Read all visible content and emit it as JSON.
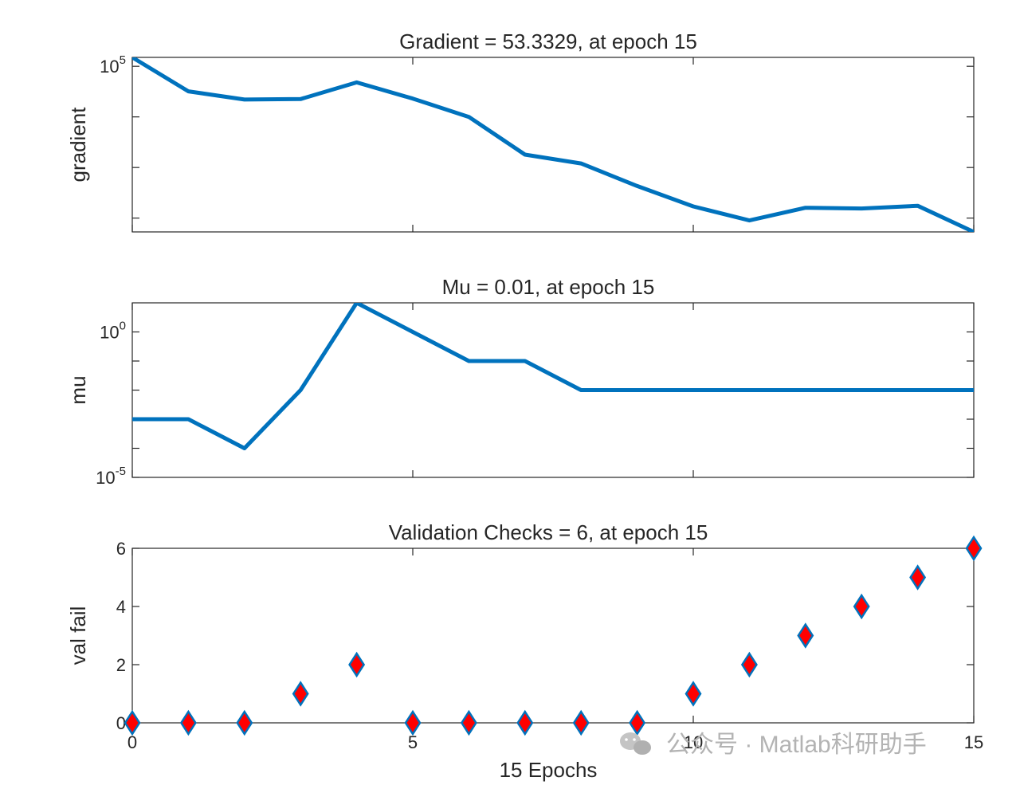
{
  "chart_data": [
    {
      "type": "line",
      "title": "Gradient = 53.3329, at epoch 15",
      "ylabel": "gradient",
      "xlabel": "",
      "yscale": "log",
      "xlim": [
        0,
        15
      ],
      "ylim": [
        53.3329,
        150000
      ],
      "x_ticks": [
        0,
        5,
        10,
        15
      ],
      "y_ticks": [
        10,
        100,
        1000,
        10000,
        100000
      ],
      "y_ticklabels": [
        {
          "base": "10",
          "exp": "5",
          "value": 100000
        }
      ],
      "grid": false,
      "series": [
        {
          "color": "#0072BD",
          "x": [
            0,
            1,
            2,
            3,
            4,
            5,
            6,
            7,
            8,
            9,
            10,
            11,
            12,
            13,
            14,
            15
          ],
          "y": [
            150000,
            32000,
            22000,
            22500,
            48000,
            23000,
            10000,
            1800,
            1200,
            430,
            170,
            90,
            160,
            155,
            175,
            53.3329
          ]
        }
      ]
    },
    {
      "type": "line",
      "title": "Mu = 0.01, at epoch 15",
      "ylabel": "mu",
      "xlabel": "",
      "yscale": "log",
      "xlim": [
        0,
        15
      ],
      "ylim": [
        1e-05,
        10
      ],
      "x_ticks": [
        0,
        5,
        10,
        15
      ],
      "y_ticks": [
        1e-05,
        0.0001,
        0.001,
        0.01,
        0.1,
        1
      ],
      "y_ticklabels": [
        {
          "base": "10",
          "exp": "0",
          "value": 1
        },
        {
          "base": "10",
          "exp": "-5",
          "value": 1e-05
        }
      ],
      "grid": false,
      "series": [
        {
          "color": "#0072BD",
          "x": [
            0,
            1,
            2,
            3,
            4,
            5,
            6,
            7,
            8,
            9,
            10,
            11,
            12,
            13,
            14,
            15
          ],
          "y": [
            0.001,
            0.001,
            0.0001,
            0.01,
            10,
            1,
            0.1,
            0.1,
            0.01,
            0.01,
            0.01,
            0.01,
            0.01,
            0.01,
            0.01,
            0.01
          ]
        }
      ]
    },
    {
      "type": "scatter",
      "title": "Validation Checks = 6, at epoch 15",
      "ylabel": "val fail",
      "xlabel": "15 Epochs",
      "xlim": [
        0,
        15
      ],
      "ylim": [
        0,
        6
      ],
      "x_ticks": [
        0,
        5,
        10,
        15
      ],
      "x_ticklabels": [
        "0",
        "5",
        "10",
        "15"
      ],
      "y_ticks": [
        0,
        2,
        4,
        6
      ],
      "y_ticklabels": [
        "0",
        "2",
        "4",
        "6"
      ],
      "grid": false,
      "marker": "diamond",
      "marker_fill": "#FF0000",
      "marker_edge": "#0072BD",
      "series": [
        {
          "x": [
            0,
            1,
            2,
            3,
            4,
            5,
            6,
            7,
            8,
            9,
            10,
            11,
            12,
            13,
            14,
            15
          ],
          "y": [
            0,
            0,
            0,
            1,
            2,
            0,
            0,
            0,
            0,
            0,
            1,
            2,
            3,
            4,
            5,
            6
          ]
        }
      ]
    }
  ],
  "watermark": {
    "icon": "wechat-icon",
    "text": "公众号 · Matlab科研助手"
  }
}
